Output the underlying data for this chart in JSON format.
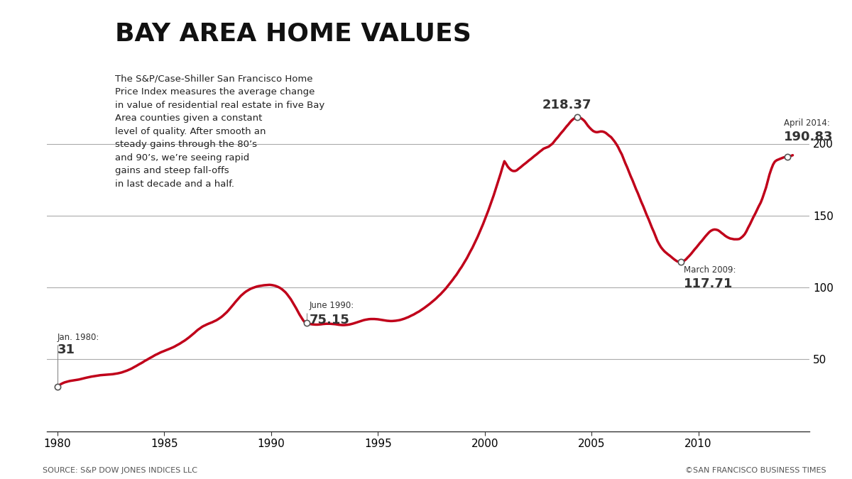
{
  "title": "BAY AREA HOME VALUES",
  "description_lines": [
    "The S&P/Case-Shiller San Francisco Home",
    "Price Index measures the average change",
    "in value of residential real estate in five Bay",
    "Area counties given a constant",
    "level of quality. After smooth an",
    "steady gains through the 80’s",
    "and 90’s, we’re seeing rapid",
    "gains and steep fall-offs",
    "in last decade and a half."
  ],
  "source_left": "SOURCE: S&P DOW JONES INDICES LLC",
  "source_right": "©SAN FRANCISCO BUSINESS TIMES",
  "line_color": "#c0001a",
  "bg_color": "#ffffff",
  "grid_color": "#aaaaaa",
  "yticks": [
    50,
    100,
    150,
    200
  ],
  "ylim": [
    0,
    240
  ],
  "xlim": [
    1979.5,
    2015.2
  ],
  "xticks": [
    1980,
    1985,
    1990,
    1995,
    2000,
    2005,
    2010
  ],
  "data": {
    "1980.0": 31.0,
    "1980.08": 32.0,
    "1980.17": 32.8,
    "1980.25": 33.4,
    "1980.33": 33.9,
    "1980.42": 34.3,
    "1980.5": 34.6,
    "1980.58": 34.9,
    "1980.67": 35.1,
    "1980.75": 35.3,
    "1980.83": 35.5,
    "1980.92": 35.7,
    "1981.0": 35.9,
    "1981.08": 36.2,
    "1981.17": 36.5,
    "1981.25": 36.8,
    "1981.33": 37.1,
    "1981.42": 37.4,
    "1981.5": 37.7,
    "1981.58": 37.9,
    "1981.67": 38.1,
    "1981.75": 38.3,
    "1981.83": 38.5,
    "1981.92": 38.7,
    "1982.0": 38.9,
    "1982.08": 39.0,
    "1982.17": 39.1,
    "1982.25": 39.2,
    "1982.33": 39.3,
    "1982.42": 39.4,
    "1982.5": 39.5,
    "1982.58": 39.6,
    "1982.67": 39.8,
    "1982.75": 40.0,
    "1982.83": 40.2,
    "1982.92": 40.5,
    "1983.0": 40.8,
    "1983.08": 41.2,
    "1983.17": 41.6,
    "1983.25": 42.1,
    "1983.33": 42.6,
    "1983.42": 43.2,
    "1983.5": 43.8,
    "1983.58": 44.5,
    "1983.67": 45.2,
    "1983.75": 45.9,
    "1983.83": 46.6,
    "1983.92": 47.3,
    "1984.0": 48.0,
    "1984.08": 48.8,
    "1984.17": 49.5,
    "1984.25": 50.2,
    "1984.33": 50.9,
    "1984.42": 51.6,
    "1984.5": 52.3,
    "1984.58": 53.0,
    "1984.67": 53.6,
    "1984.75": 54.2,
    "1984.83": 54.8,
    "1984.92": 55.3,
    "1985.0": 55.8,
    "1985.08": 56.3,
    "1985.17": 56.8,
    "1985.25": 57.3,
    "1985.33": 57.8,
    "1985.42": 58.4,
    "1985.5": 59.0,
    "1985.58": 59.7,
    "1985.67": 60.4,
    "1985.75": 61.1,
    "1985.83": 61.9,
    "1985.92": 62.7,
    "1986.0": 63.5,
    "1986.08": 64.4,
    "1986.17": 65.4,
    "1986.25": 66.4,
    "1986.33": 67.4,
    "1986.42": 68.5,
    "1986.5": 69.6,
    "1986.58": 70.6,
    "1986.67": 71.5,
    "1986.75": 72.4,
    "1986.83": 73.1,
    "1986.92": 73.7,
    "1987.0": 74.3,
    "1987.08": 74.8,
    "1987.17": 75.3,
    "1987.25": 75.8,
    "1987.33": 76.4,
    "1987.42": 77.0,
    "1987.5": 77.7,
    "1987.58": 78.5,
    "1987.67": 79.4,
    "1987.75": 80.4,
    "1987.83": 81.5,
    "1987.92": 82.7,
    "1988.0": 84.0,
    "1988.08": 85.4,
    "1988.17": 86.9,
    "1988.25": 88.4,
    "1988.33": 89.9,
    "1988.42": 91.4,
    "1988.5": 92.8,
    "1988.58": 94.1,
    "1988.67": 95.3,
    "1988.75": 96.3,
    "1988.83": 97.2,
    "1988.92": 98.0,
    "1989.0": 98.7,
    "1989.08": 99.3,
    "1989.17": 99.8,
    "1989.25": 100.2,
    "1989.33": 100.6,
    "1989.42": 100.9,
    "1989.5": 101.1,
    "1989.58": 101.3,
    "1989.67": 101.5,
    "1989.75": 101.6,
    "1989.83": 101.7,
    "1989.92": 101.8,
    "1990.0": 101.7,
    "1990.08": 101.5,
    "1990.17": 101.2,
    "1990.25": 100.8,
    "1990.33": 100.3,
    "1990.42": 99.6,
    "1990.5": 98.8,
    "1990.58": 97.8,
    "1990.67": 96.6,
    "1990.75": 95.2,
    "1990.83": 93.6,
    "1990.92": 91.8,
    "1991.0": 89.8,
    "1991.08": 87.7,
    "1991.17": 85.5,
    "1991.25": 83.3,
    "1991.33": 81.1,
    "1991.42": 79.0,
    "1991.5": 77.1,
    "1991.58": 75.7,
    "1991.67": 75.15,
    "1991.75": 74.8,
    "1991.83": 74.5,
    "1991.92": 74.3,
    "1992.0": 74.2,
    "1992.08": 74.1,
    "1992.17": 74.1,
    "1992.25": 74.2,
    "1992.33": 74.3,
    "1992.42": 74.5,
    "1992.5": 74.6,
    "1992.58": 74.7,
    "1992.67": 74.7,
    "1992.75": 74.7,
    "1992.83": 74.6,
    "1992.92": 74.5,
    "1993.0": 74.4,
    "1993.08": 74.2,
    "1993.17": 74.0,
    "1993.25": 73.9,
    "1993.33": 73.8,
    "1993.42": 73.8,
    "1993.5": 73.9,
    "1993.58": 74.0,
    "1993.67": 74.2,
    "1993.75": 74.5,
    "1993.83": 74.8,
    "1993.92": 75.2,
    "1994.0": 75.6,
    "1994.08": 76.0,
    "1994.17": 76.4,
    "1994.25": 76.8,
    "1994.33": 77.2,
    "1994.42": 77.5,
    "1994.5": 77.7,
    "1994.58": 77.9,
    "1994.67": 78.0,
    "1994.75": 78.0,
    "1994.83": 78.0,
    "1994.92": 77.9,
    "1995.0": 77.8,
    "1995.08": 77.6,
    "1995.17": 77.4,
    "1995.25": 77.2,
    "1995.33": 77.0,
    "1995.42": 76.8,
    "1995.5": 76.7,
    "1995.58": 76.6,
    "1995.67": 76.6,
    "1995.75": 76.7,
    "1995.83": 76.8,
    "1995.92": 77.0,
    "1996.0": 77.2,
    "1996.08": 77.5,
    "1996.17": 77.9,
    "1996.25": 78.3,
    "1996.33": 78.8,
    "1996.42": 79.3,
    "1996.5": 79.9,
    "1996.58": 80.5,
    "1996.67": 81.1,
    "1996.75": 81.8,
    "1996.83": 82.5,
    "1996.92": 83.2,
    "1997.0": 84.0,
    "1997.08": 84.8,
    "1997.17": 85.7,
    "1997.25": 86.6,
    "1997.33": 87.5,
    "1997.42": 88.5,
    "1997.5": 89.5,
    "1997.58": 90.5,
    "1997.67": 91.6,
    "1997.75": 92.7,
    "1997.83": 93.9,
    "1997.92": 95.1,
    "1998.0": 96.4,
    "1998.08": 97.7,
    "1998.17": 99.1,
    "1998.25": 100.6,
    "1998.33": 102.1,
    "1998.42": 103.7,
    "1998.5": 105.3,
    "1998.58": 107.0,
    "1998.67": 108.7,
    "1998.75": 110.5,
    "1998.83": 112.4,
    "1998.92": 114.3,
    "1999.0": 116.3,
    "1999.08": 118.4,
    "1999.17": 120.5,
    "1999.25": 122.8,
    "1999.33": 125.1,
    "1999.42": 127.5,
    "1999.5": 130.0,
    "1999.58": 132.6,
    "1999.67": 135.3,
    "1999.75": 138.1,
    "1999.83": 141.0,
    "1999.92": 144.0,
    "2000.0": 147.1,
    "2000.08": 150.3,
    "2000.17": 153.6,
    "2000.25": 157.0,
    "2000.33": 160.5,
    "2000.42": 164.1,
    "2000.5": 167.8,
    "2000.58": 171.6,
    "2000.67": 175.5,
    "2000.75": 179.5,
    "2000.83": 183.6,
    "2000.92": 187.8,
    "2001.0": 186.0,
    "2001.08": 184.0,
    "2001.17": 182.5,
    "2001.25": 181.5,
    "2001.33": 181.0,
    "2001.42": 181.0,
    "2001.5": 181.5,
    "2001.58": 182.5,
    "2001.67": 183.5,
    "2001.75": 184.5,
    "2001.83": 185.5,
    "2001.92": 186.5,
    "2002.0": 187.5,
    "2002.08": 188.5,
    "2002.17": 189.5,
    "2002.25": 190.5,
    "2002.33": 191.5,
    "2002.42": 192.5,
    "2002.5": 193.5,
    "2002.58": 194.5,
    "2002.67": 195.5,
    "2002.75": 196.5,
    "2002.83": 197.0,
    "2002.92": 197.5,
    "2003.0": 198.0,
    "2003.08": 199.0,
    "2003.17": 200.0,
    "2003.25": 201.5,
    "2003.33": 203.0,
    "2003.42": 204.5,
    "2003.5": 206.0,
    "2003.58": 207.5,
    "2003.67": 209.0,
    "2003.75": 210.5,
    "2003.83": 212.0,
    "2003.92": 213.5,
    "2004.0": 215.0,
    "2004.08": 216.3,
    "2004.17": 217.4,
    "2004.25": 218.1,
    "2004.33": 218.37,
    "2004.5": 217.8,
    "2004.58": 217.0,
    "2004.67": 215.8,
    "2004.75": 214.2,
    "2004.83": 212.5,
    "2004.92": 211.0,
    "2005.0": 209.8,
    "2005.08": 208.8,
    "2005.17": 208.2,
    "2005.25": 208.0,
    "2005.33": 208.2,
    "2005.42": 208.5,
    "2005.5": 208.5,
    "2005.58": 208.2,
    "2005.67": 207.5,
    "2005.75": 206.5,
    "2005.83": 205.5,
    "2005.92": 204.5,
    "2006.0": 203.0,
    "2006.08": 201.5,
    "2006.17": 199.5,
    "2006.25": 197.5,
    "2006.33": 195.0,
    "2006.42": 192.5,
    "2006.5": 189.5,
    "2006.58": 186.5,
    "2006.67": 183.5,
    "2006.75": 180.5,
    "2006.83": 177.5,
    "2006.92": 174.5,
    "2007.0": 171.5,
    "2007.08": 168.5,
    "2007.17": 165.5,
    "2007.25": 162.5,
    "2007.33": 159.5,
    "2007.42": 156.5,
    "2007.5": 153.5,
    "2007.58": 150.5,
    "2007.67": 147.5,
    "2007.75": 144.5,
    "2007.83": 141.5,
    "2007.92": 138.5,
    "2008.0": 135.5,
    "2008.08": 132.5,
    "2008.17": 130.0,
    "2008.25": 128.0,
    "2008.33": 126.5,
    "2008.42": 125.0,
    "2008.5": 124.0,
    "2008.58": 123.0,
    "2008.67": 122.0,
    "2008.75": 121.0,
    "2008.83": 120.0,
    "2008.92": 119.0,
    "2009.0": 118.2,
    "2009.08": 117.85,
    "2009.17": 117.71,
    "2009.25": 117.9,
    "2009.33": 118.5,
    "2009.42": 119.5,
    "2009.5": 120.8,
    "2009.58": 122.0,
    "2009.67": 123.5,
    "2009.75": 125.0,
    "2009.83": 126.5,
    "2009.92": 128.0,
    "2010.0": 129.5,
    "2010.08": 131.0,
    "2010.17": 132.5,
    "2010.25": 134.0,
    "2010.33": 135.5,
    "2010.42": 137.0,
    "2010.5": 138.3,
    "2010.58": 139.3,
    "2010.67": 140.0,
    "2010.75": 140.3,
    "2010.83": 140.2,
    "2010.92": 139.8,
    "2011.0": 139.0,
    "2011.08": 138.0,
    "2011.17": 137.0,
    "2011.25": 136.0,
    "2011.33": 135.2,
    "2011.42": 134.5,
    "2011.5": 134.0,
    "2011.58": 133.8,
    "2011.67": 133.5,
    "2011.75": 133.5,
    "2011.83": 133.5,
    "2011.92": 133.7,
    "2012.0": 134.5,
    "2012.08": 135.5,
    "2012.17": 137.0,
    "2012.25": 139.0,
    "2012.33": 141.5,
    "2012.42": 144.0,
    "2012.5": 146.5,
    "2012.58": 149.0,
    "2012.67": 151.5,
    "2012.75": 154.0,
    "2012.83": 156.5,
    "2012.92": 159.0,
    "2013.0": 162.0,
    "2013.08": 165.5,
    "2013.17": 169.5,
    "2013.25": 174.0,
    "2013.33": 178.5,
    "2013.42": 182.5,
    "2013.5": 185.5,
    "2013.58": 187.5,
    "2013.67": 188.5,
    "2013.75": 189.0,
    "2013.83": 189.5,
    "2013.92": 190.0,
    "2014.0": 190.5,
    "2014.08": 190.7,
    "2014.17": 190.83,
    "2014.25": 191.0,
    "2014.33": 191.5,
    "2014.42": 192.0
  }
}
